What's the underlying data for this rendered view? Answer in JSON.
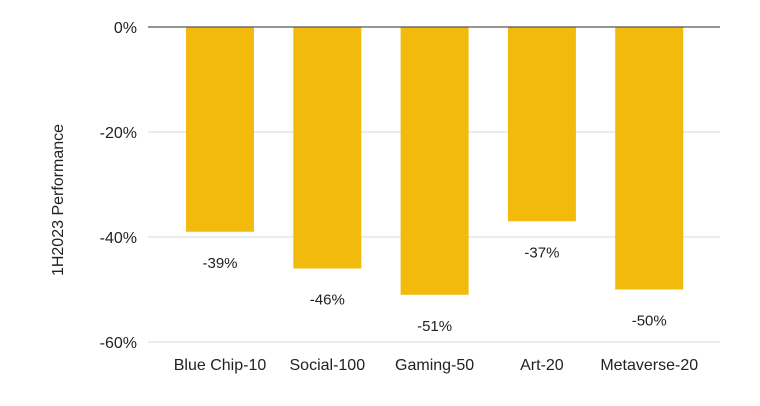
{
  "chart_data": {
    "type": "bar",
    "title": "",
    "xlabel": "",
    "ylabel": "1H2023 Performance",
    "categories": [
      "Blue Chip-10",
      "Social-100",
      "Gaming-50",
      "Art-20",
      "Metaverse-20"
    ],
    "values": [
      -39,
      -46,
      -51,
      -37,
      -50
    ],
    "data_labels": [
      "-39%",
      "-46%",
      "-51%",
      "-37%",
      "-50%"
    ],
    "ylim": [
      -60,
      0
    ],
    "yticks": [
      0,
      -20,
      -40,
      -60
    ],
    "ytick_labels": [
      "0%",
      "-20%",
      "-40%",
      "-60%"
    ],
    "value_unit": "%",
    "grid": true,
    "legend": "none",
    "bar_color": "#F1BA0C",
    "zero_line_color": "#555555",
    "grid_color": "#d9d9d9"
  }
}
